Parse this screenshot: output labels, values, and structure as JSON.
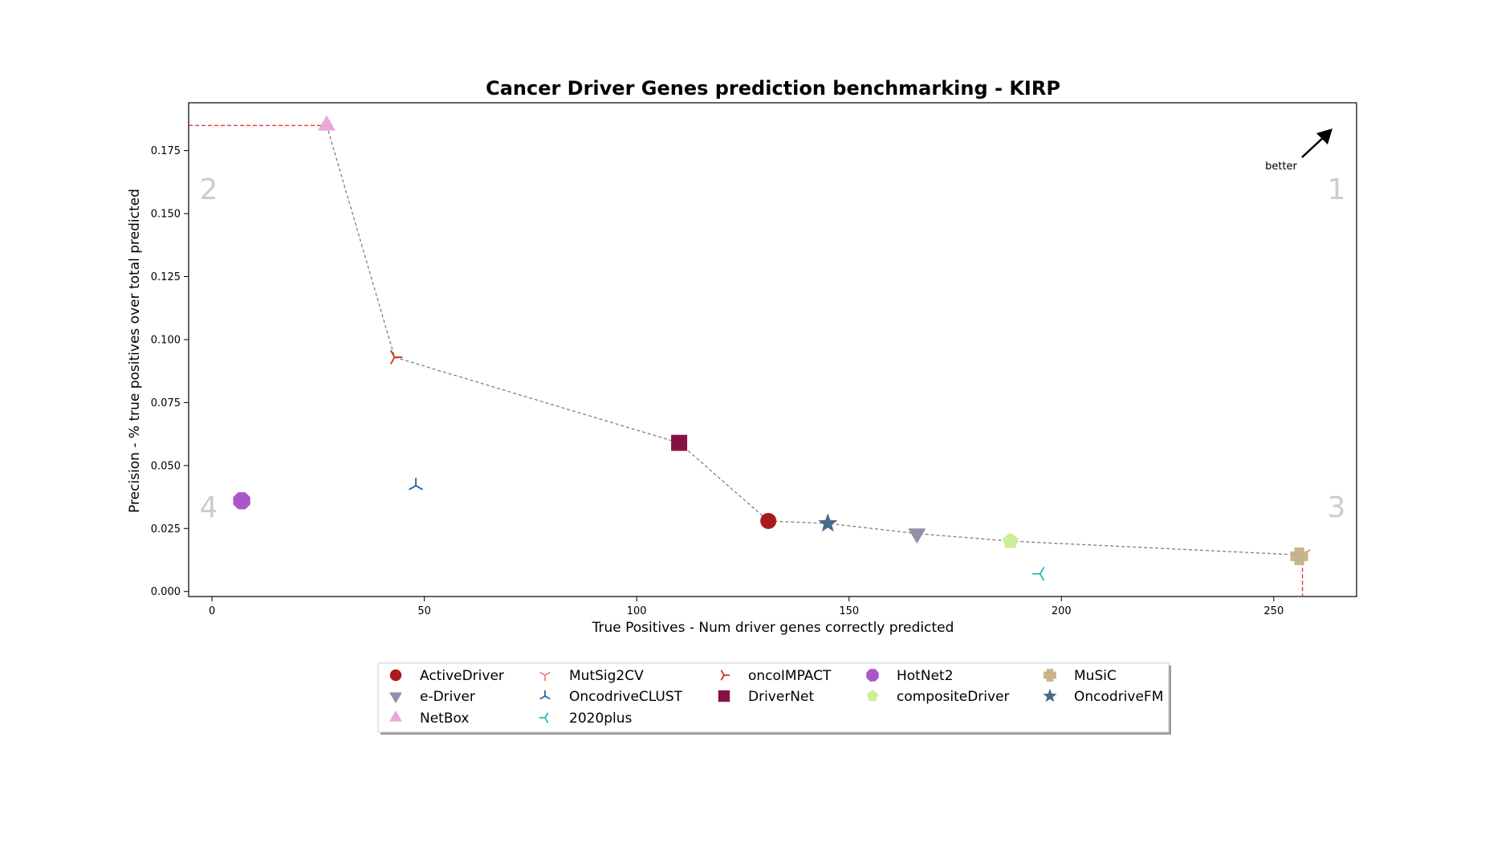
{
  "chart_data": {
    "type": "scatter",
    "title": "Cancer Driver Genes prediction benchmarking - KIRP",
    "xlabel": "True Positives - Num driver genes correctly predicted",
    "ylabel": "Precision - % true positives over total predicted",
    "xlim": [
      -5.5,
      269.5
    ],
    "ylim": [
      -0.002,
      0.194
    ],
    "xticks": [
      0,
      50,
      100,
      150,
      200,
      250
    ],
    "yticks": [
      0.0,
      0.025,
      0.05,
      0.075,
      0.1,
      0.125,
      0.15,
      0.175
    ],
    "xtick_labels": [
      "0",
      "50",
      "100",
      "150",
      "200",
      "250"
    ],
    "ytick_labels": [
      "0.000",
      "0.025",
      "0.050",
      "0.075",
      "0.100",
      "0.125",
      "0.150",
      "0.175"
    ],
    "grid": false,
    "legend_position": "bottom-center",
    "quadrant_labels": [
      {
        "text": "1",
        "position": "top-right"
      },
      {
        "text": "2",
        "position": "top-left"
      },
      {
        "text": "3",
        "position": "bottom-right"
      },
      {
        "text": "4",
        "position": "bottom-left"
      }
    ],
    "annotation": {
      "text": "better",
      "arrow": "up-right"
    },
    "series": [
      {
        "name": "ActiveDriver",
        "x": 131,
        "y": 0.028,
        "marker": "circle",
        "color": "#aa1a1a"
      },
      {
        "name": "MutSig2CV",
        "x": 257,
        "y": 0.015,
        "marker": "tri-down",
        "color": "#f08080"
      },
      {
        "name": "oncoIMPACT",
        "x": 43,
        "y": 0.093,
        "marker": "tri-right",
        "color": "#cc3311"
      },
      {
        "name": "HotNet2",
        "x": 7,
        "y": 0.036,
        "marker": "octagon",
        "color": "#aa55cc"
      },
      {
        "name": "MuSiC",
        "x": 256,
        "y": 0.014,
        "marker": "plus",
        "color": "#c8b48c"
      },
      {
        "name": "e-Driver",
        "x": 166,
        "y": 0.023,
        "marker": "triangle-down",
        "color": "#9090aa"
      },
      {
        "name": "OncodriveCLUST",
        "x": 48,
        "y": 0.042,
        "marker": "tri-up",
        "color": "#2266aa"
      },
      {
        "name": "DriverNet",
        "x": 110,
        "y": 0.059,
        "marker": "square",
        "color": "#881144"
      },
      {
        "name": "compositeDriver",
        "x": 188,
        "y": 0.02,
        "marker": "pentagon",
        "color": "#ccee99"
      },
      {
        "name": "OncodriveFM",
        "x": 145,
        "y": 0.027,
        "marker": "star",
        "color": "#4a6a8a"
      },
      {
        "name": "NetBox",
        "x": 27,
        "y": 0.185,
        "marker": "triangle-up",
        "color": "#e8a8d8"
      },
      {
        "name": "2020plus",
        "x": 195,
        "y": 0.007,
        "marker": "tri-left",
        "color": "#22bbbb"
      }
    ],
    "pareto_frontier": [
      [
        27,
        0.185
      ],
      [
        43,
        0.093
      ],
      [
        110,
        0.059
      ],
      [
        131,
        0.028
      ],
      [
        145,
        0.027
      ],
      [
        166,
        0.023
      ],
      [
        188,
        0.02
      ],
      [
        256,
        0.0145
      ]
    ]
  }
}
